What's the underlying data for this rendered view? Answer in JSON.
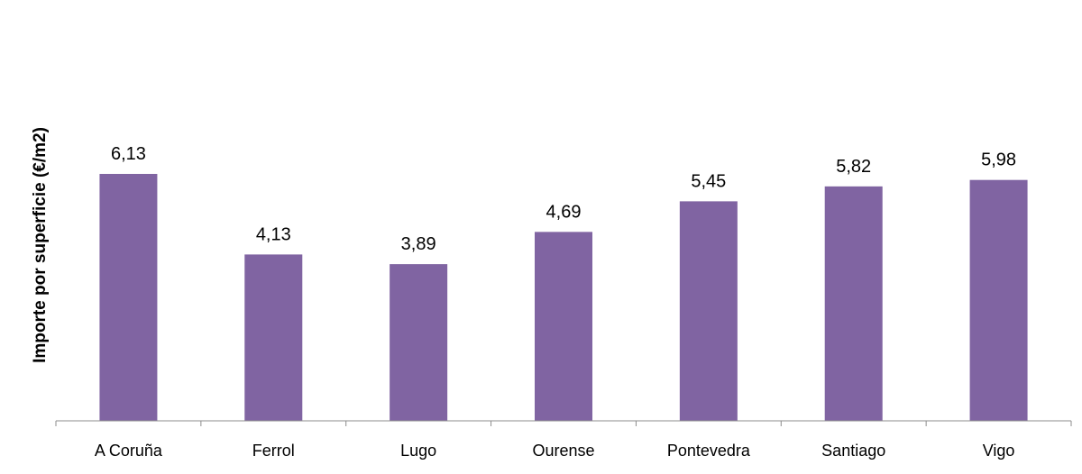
{
  "chart_data": {
    "type": "bar",
    "title": "",
    "xlabel": "",
    "ylabel": "Importe por superficie (€/m2)",
    "categories": [
      "A Coruña",
      "Ferrol",
      "Lugo",
      "Ourense",
      "Pontevedra",
      "Santiago",
      "Vigo"
    ],
    "values": [
      6.13,
      4.13,
      3.89,
      4.69,
      5.45,
      5.82,
      5.98
    ],
    "value_labels": [
      "6,13",
      "4,13",
      "3,89",
      "4,69",
      "5,45",
      "5,82",
      "5,98"
    ],
    "ylim": [
      0,
      8
    ],
    "grid": false,
    "legend": "none",
    "bar_color": "#8064a2",
    "axis_color": "#8c8c8c"
  }
}
